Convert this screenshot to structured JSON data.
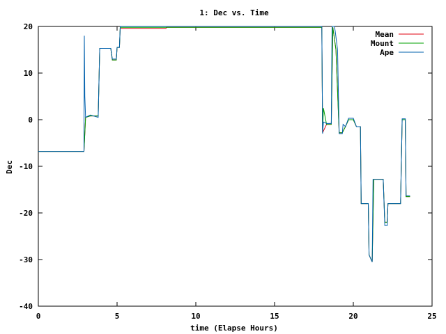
{
  "chart_data": {
    "type": "line",
    "title": "1: Dec vs. Time",
    "xlabel": "time (Elapse Hours)",
    "ylabel": "Dec",
    "xlim": [
      0,
      25
    ],
    "ylim": [
      -40,
      20
    ],
    "xticks": [
      0,
      5,
      10,
      15,
      20,
      25
    ],
    "yticks": [
      -40,
      -30,
      -20,
      -10,
      0,
      10,
      20
    ],
    "grid": false,
    "legend_position": "top-right",
    "series": [
      {
        "name": "Mean",
        "color": "#e0000e",
        "points": [
          [
            0,
            -6.8
          ],
          [
            2.9,
            -6.8
          ],
          [
            2.95,
            -3
          ],
          [
            3.0,
            0.5
          ],
          [
            3.3,
            0.8
          ],
          [
            3.8,
            0.8
          ],
          [
            3.9,
            15.3
          ],
          [
            4.6,
            15.3
          ],
          [
            4.7,
            12.8
          ],
          [
            4.95,
            12.8
          ],
          [
            5.0,
            15.5
          ],
          [
            5.15,
            15.5
          ],
          [
            5.2,
            19.6
          ],
          [
            8.1,
            19.6
          ],
          [
            8.15,
            19.8
          ],
          [
            18.0,
            19.8
          ],
          [
            18.05,
            -2.8
          ],
          [
            18.3,
            -1
          ],
          [
            18.6,
            -1
          ],
          [
            18.7,
            19.8
          ],
          [
            18.9,
            15
          ],
          [
            19.1,
            -2.8
          ],
          [
            19.3,
            -2.8
          ],
          [
            19.5,
            -1.5
          ],
          [
            19.7,
            0
          ],
          [
            20.0,
            0
          ],
          [
            20.2,
            -1.5
          ],
          [
            20.45,
            -1.5
          ],
          [
            20.5,
            -18
          ],
          [
            20.95,
            -18
          ],
          [
            21.0,
            -29
          ],
          [
            21.2,
            -30.5
          ],
          [
            21.3,
            -12.8
          ],
          [
            21.9,
            -12.8
          ],
          [
            22.0,
            -22
          ],
          [
            22.15,
            -22
          ],
          [
            22.2,
            -18
          ],
          [
            23.0,
            -18
          ],
          [
            23.1,
            0
          ],
          [
            23.3,
            0
          ],
          [
            23.35,
            -16.5
          ],
          [
            23.6,
            -16.5
          ]
        ]
      },
      {
        "name": "Mount",
        "color": "#00a000",
        "points": [
          [
            0,
            -6.8
          ],
          [
            2.9,
            -6.8
          ],
          [
            2.95,
            -3
          ],
          [
            3.0,
            0.5
          ],
          [
            3.3,
            0.8
          ],
          [
            3.8,
            0.8
          ],
          [
            3.9,
            15.3
          ],
          [
            4.6,
            15.3
          ],
          [
            4.7,
            12.8
          ],
          [
            4.95,
            12.8
          ],
          [
            5.0,
            15.5
          ],
          [
            5.15,
            15.5
          ],
          [
            5.2,
            19.8
          ],
          [
            18.0,
            19.8
          ],
          [
            18.05,
            -2.8
          ],
          [
            18.1,
            2.5
          ],
          [
            18.3,
            -1
          ],
          [
            18.6,
            -1
          ],
          [
            18.7,
            19.8
          ],
          [
            18.9,
            15
          ],
          [
            19.1,
            -2.8
          ],
          [
            19.3,
            -2.8
          ],
          [
            19.5,
            -1.5
          ],
          [
            19.7,
            0
          ],
          [
            20.0,
            0
          ],
          [
            20.2,
            -1.5
          ],
          [
            20.45,
            -1.5
          ],
          [
            20.5,
            -18
          ],
          [
            20.95,
            -18
          ],
          [
            21.0,
            -29
          ],
          [
            21.2,
            -30.5
          ],
          [
            21.3,
            -12.8
          ],
          [
            21.9,
            -12.8
          ],
          [
            22.0,
            -22
          ],
          [
            22.15,
            -22
          ],
          [
            22.2,
            -18
          ],
          [
            23.0,
            -18
          ],
          [
            23.1,
            0
          ],
          [
            23.3,
            0
          ],
          [
            23.35,
            -16.5
          ],
          [
            23.6,
            -16.5
          ]
        ]
      },
      {
        "name": "Ape",
        "color": "#0060ad",
        "points": [
          [
            0,
            -6.8
          ],
          [
            2.9,
            -6.8
          ],
          [
            2.92,
            18
          ],
          [
            2.95,
            5
          ],
          [
            3.0,
            0.5
          ],
          [
            3.3,
            1
          ],
          [
            3.8,
            0.5
          ],
          [
            3.9,
            15.3
          ],
          [
            4.6,
            15.3
          ],
          [
            4.7,
            13
          ],
          [
            4.95,
            13
          ],
          [
            5.0,
            15.5
          ],
          [
            5.15,
            15.5
          ],
          [
            5.2,
            20
          ],
          [
            18.0,
            20
          ],
          [
            18.05,
            -3
          ],
          [
            18.1,
            -0.5
          ],
          [
            18.3,
            -0.8
          ],
          [
            18.6,
            -0.8
          ],
          [
            18.65,
            20
          ],
          [
            18.8,
            20
          ],
          [
            18.85,
            19
          ],
          [
            19.0,
            15
          ],
          [
            19.1,
            -3
          ],
          [
            19.3,
            -3
          ],
          [
            19.35,
            -1
          ],
          [
            19.5,
            -1.5
          ],
          [
            19.7,
            0.3
          ],
          [
            20.0,
            0.3
          ],
          [
            20.2,
            -1.5
          ],
          [
            20.45,
            -1.5
          ],
          [
            20.5,
            -18
          ],
          [
            20.95,
            -18
          ],
          [
            21.0,
            -29
          ],
          [
            21.2,
            -30.5
          ],
          [
            21.25,
            -12.8
          ],
          [
            21.9,
            -12.8
          ],
          [
            22.0,
            -22.7
          ],
          [
            22.15,
            -22.7
          ],
          [
            22.2,
            -18
          ],
          [
            23.0,
            -18
          ],
          [
            23.1,
            0.2
          ],
          [
            23.3,
            0.2
          ],
          [
            23.35,
            -16.3
          ],
          [
            23.6,
            -16.3
          ]
        ]
      }
    ]
  }
}
